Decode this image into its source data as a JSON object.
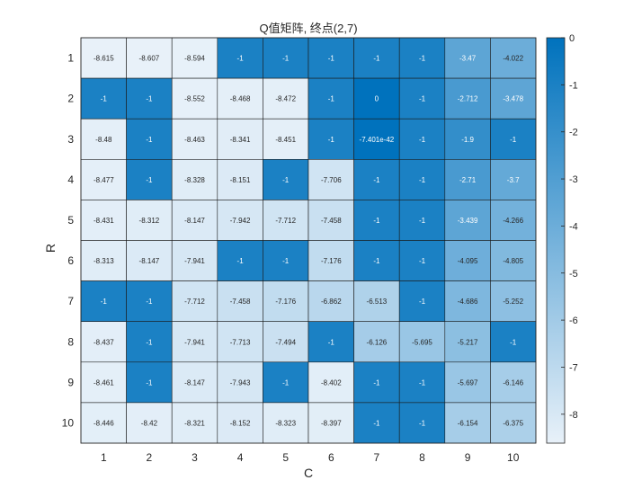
{
  "chart_data": {
    "type": "heatmap",
    "title": "Q值矩阵, 终点(2,7)",
    "xlabel": "C",
    "ylabel": "R",
    "x_categories": [
      "1",
      "2",
      "3",
      "4",
      "5",
      "6",
      "7",
      "8",
      "9",
      "10"
    ],
    "y_categories": [
      "1",
      "2",
      "3",
      "4",
      "5",
      "6",
      "7",
      "8",
      "9",
      "10"
    ],
    "values": [
      [
        -8.615,
        -8.607,
        -8.594,
        -1,
        -1,
        -1,
        -1,
        -1,
        -3.47,
        -4.022
      ],
      [
        -1,
        -1,
        -8.552,
        -8.468,
        -8.472,
        -1,
        0,
        -1,
        -2.712,
        -3.478
      ],
      [
        -8.48,
        -1,
        -8.463,
        -8.341,
        -8.451,
        -1,
        -7.401e-42,
        -1,
        -1.9,
        -1
      ],
      [
        -8.477,
        -1,
        -8.328,
        -8.151,
        -1,
        -7.706,
        -1,
        -1,
        -2.71,
        -3.7
      ],
      [
        -8.431,
        -8.312,
        -8.147,
        -7.942,
        -7.712,
        -7.458,
        -1,
        -1,
        -3.439,
        -4.266
      ],
      [
        -8.313,
        -8.147,
        -7.941,
        -1,
        -1,
        -7.176,
        -1,
        -1,
        -4.095,
        -4.805
      ],
      [
        -1,
        -1,
        -7.712,
        -7.458,
        -7.176,
        -6.862,
        -6.513,
        -1,
        -4.686,
        -5.252
      ],
      [
        -8.437,
        -1,
        -7.941,
        -7.713,
        -7.494,
        -1,
        -6.126,
        -5.695,
        -5.217,
        -1
      ],
      [
        -8.461,
        -1,
        -8.147,
        -7.943,
        -1,
        -8.402,
        -1,
        -1,
        -5.697,
        -6.146
      ],
      [
        -8.446,
        -8.42,
        -8.321,
        -8.152,
        -8.323,
        -8.397,
        -1,
        -1,
        -6.154,
        -6.375
      ]
    ],
    "cell_labels": [
      [
        "-8.615",
        "-8.607",
        "-8.594",
        "-1",
        "-1",
        "-1",
        "-1",
        "-1",
        "-3.47",
        "-4.022"
      ],
      [
        "-1",
        "-1",
        "-8.552",
        "-8.468",
        "-8.472",
        "-1",
        "0",
        "-1",
        "-2.712",
        "-3.478"
      ],
      [
        "-8.48",
        "-1",
        "-8.463",
        "-8.341",
        "-8.451",
        "-1",
        "-7.401e-42",
        "-1",
        "-1.9",
        "-1"
      ],
      [
        "-8.477",
        "-1",
        "-8.328",
        "-8.151",
        "-1",
        "-7.706",
        "-1",
        "-1",
        "-2.71",
        "-3.7"
      ],
      [
        "-8.431",
        "-8.312",
        "-8.147",
        "-7.942",
        "-7.712",
        "-7.458",
        "-1",
        "-1",
        "-3.439",
        "-4.266"
      ],
      [
        "-8.313",
        "-8.147",
        "-7.941",
        "-1",
        "-1",
        "-7.176",
        "-1",
        "-1",
        "-4.095",
        "-4.805"
      ],
      [
        "-1",
        "-1",
        "-7.712",
        "-7.458",
        "-7.176",
        "-6.862",
        "-6.513",
        "-1",
        "-4.686",
        "-5.252"
      ],
      [
        "-8.437",
        "-1",
        "-7.941",
        "-7.713",
        "-7.494",
        "-1",
        "-6.126",
        "-5.695",
        "-5.217",
        "-1"
      ],
      [
        "-8.461",
        "-1",
        "-8.147",
        "-7.943",
        "-1",
        "-8.402",
        "-1",
        "-1",
        "-5.697",
        "-6.146"
      ],
      [
        "-8.446",
        "-8.42",
        "-8.321",
        "-8.152",
        "-8.323",
        "-8.397",
        "-1",
        "-1",
        "-6.154",
        "-6.375"
      ]
    ],
    "colorbar": {
      "min": -8.615,
      "max": 0,
      "ticks": [
        0,
        -1,
        -2,
        -3,
        -4,
        -5,
        -6,
        -7,
        -8
      ],
      "tick_labels": [
        "0",
        "-1",
        "-2",
        "-3",
        "-4",
        "-5",
        "-6",
        "-7",
        "-8"
      ],
      "color_high": "#0072BD",
      "color_low": "#E8F1F9"
    },
    "grid": true,
    "legend": "colorbar-right"
  }
}
